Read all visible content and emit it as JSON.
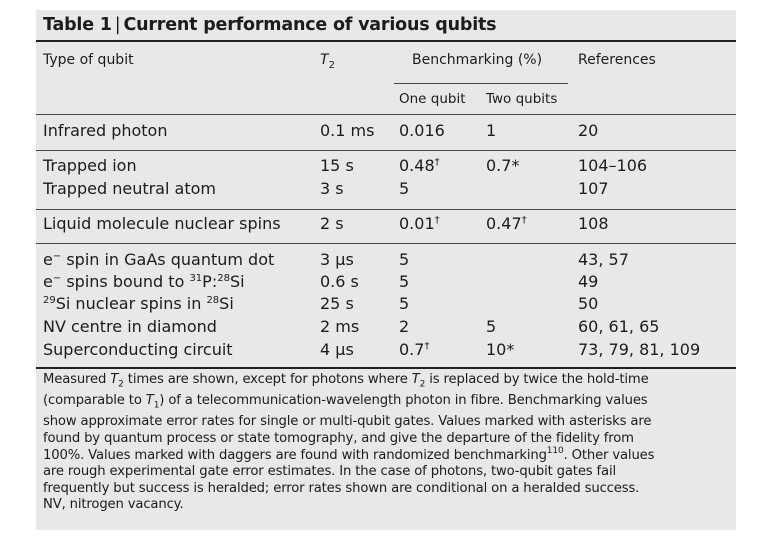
{
  "table": {
    "title_label": "Table 1",
    "title_sep": "|",
    "title_text": "Current performance of various qubits",
    "headers": {
      "type": "Type of qubit",
      "t2_symbol": "T",
      "t2_sub": "2",
      "benchmarking": "Benchmarking (%)",
      "references": "References",
      "one_qubit": "One qubit",
      "two_qubits": "Two qubits"
    },
    "rows": [
      {
        "type_parts": [
          "Infrared photon"
        ],
        "t2": "0.1 ms",
        "one": "0.016",
        "one_mark": "",
        "two": "1",
        "two_mark": "",
        "refs": "20"
      },
      {
        "type_parts": [
          "Trapped ion"
        ],
        "t2": "15 s",
        "one": "0.48",
        "one_mark": "†",
        "two": "0.7*",
        "two_mark": "",
        "refs": "104–106"
      },
      {
        "type_parts": [
          "Trapped neutral atom"
        ],
        "t2": "3 s",
        "one": "5",
        "one_mark": "",
        "two": "",
        "two_mark": "",
        "refs": "107"
      },
      {
        "type_parts": [
          "Liquid molecule nuclear spins"
        ],
        "t2": "2 s",
        "one": "0.01",
        "one_mark": "†",
        "two": "0.47",
        "two_mark": "†",
        "refs": "108"
      },
      {
        "type_parts": [
          "e",
          "−",
          " spin in GaAs quantum dot"
        ],
        "t2": "3 µs",
        "one": "5",
        "one_mark": "",
        "two": "",
        "two_mark": "",
        "refs": "43, 57"
      },
      {
        "type_parts": [
          "e",
          "−",
          " spins bound to ",
          "31",
          "P:",
          "28",
          "Si"
        ],
        "t2": "0.6 s",
        "one": "5",
        "one_mark": "",
        "two": "",
        "two_mark": "",
        "refs": "49"
      },
      {
        "type_parts": [
          "29",
          "Si nuclear spins in ",
          "28",
          "Si"
        ],
        "t2": "25 s",
        "one": "5",
        "one_mark": "",
        "two": "",
        "two_mark": "",
        "refs": "50"
      },
      {
        "type_parts": [
          "NV centre in diamond"
        ],
        "t2": "2 ms",
        "one": "2",
        "one_mark": "",
        "two": "5",
        "two_mark": "",
        "refs": "60, 61, 65"
      },
      {
        "type_parts": [
          "Superconducting circuit"
        ],
        "t2": "4 µs",
        "one": "0.7",
        "one_mark": "†",
        "two": "10*",
        "two_mark": "",
        "refs": "73, 79, 81, 109"
      }
    ],
    "footnote": [
      [
        "Measured ",
        "T",
        "2",
        " times are shown, except for photons where ",
        "T",
        "2",
        " is replaced by twice the hold-time"
      ],
      [
        "(comparable to ",
        "T",
        "1",
        ") of a telecommunication-wavelength photon in fibre. Benchmarking values"
      ],
      [
        "show approximate error rates for single or multi-qubit gates. Values marked with asterisks are"
      ],
      [
        "found by quantum process or state tomography, and give the departure of the fidelity from"
      ],
      [
        "100%. Values marked with daggers are found with randomized benchmarking",
        "110",
        ". Other values"
      ],
      [
        "are rough experimental gate error estimates. In the case of photons, two-qubit gates fail"
      ],
      [
        "frequently but success is heralded; error rates shown are conditional on a heralded success."
      ],
      [
        "NV, nitrogen vacancy."
      ]
    ]
  }
}
